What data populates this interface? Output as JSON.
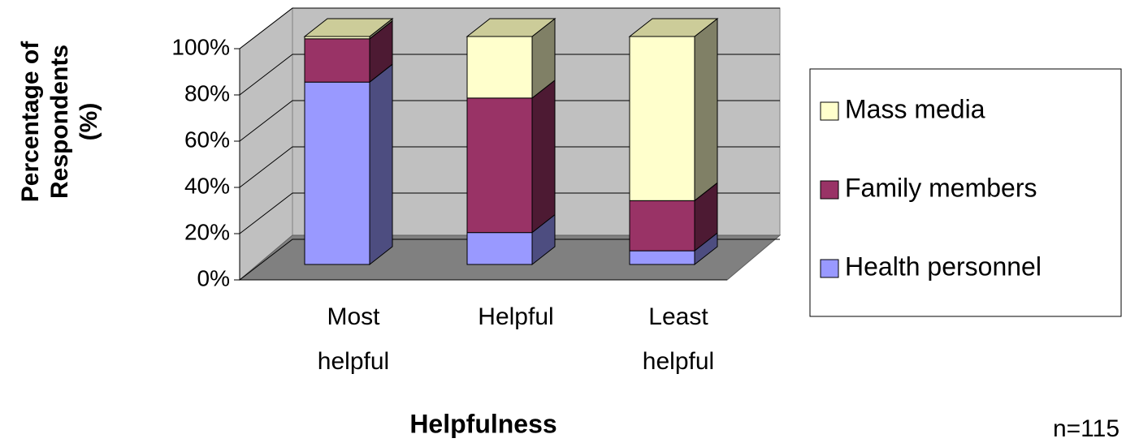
{
  "chart_data": {
    "type": "stacked_bar_3d",
    "y_label_lines": [
      "Percentage of",
      "Respondents",
      "(%)"
    ],
    "x_label": "Helpfulness",
    "annotation": "n=115",
    "categories": [
      "Most helpful",
      "Helpful",
      "Least helpful"
    ],
    "series": [
      {
        "name": "Health personnel",
        "color": "#9999ff",
        "side_color": "#4d4d80",
        "values": [
          80,
          14,
          6
        ]
      },
      {
        "name": "Family members",
        "color": "#993366",
        "side_color": "#4d1a33",
        "values": [
          19,
          59,
          22
        ]
      },
      {
        "name": "Mass media",
        "color": "#ffffcc",
        "side_color": "#808066",
        "values": [
          1,
          27,
          72
        ]
      }
    ],
    "ylim": [
      0,
      100
    ],
    "yticks": [
      {
        "value": 0,
        "label": "0%"
      },
      {
        "value": 20,
        "label": "20%"
      },
      {
        "value": 40,
        "label": "40%"
      },
      {
        "value": 60,
        "label": "60%"
      },
      {
        "value": 80,
        "label": "80%"
      },
      {
        "value": 100,
        "label": "100%"
      }
    ],
    "grid": true,
    "legend": "right"
  }
}
